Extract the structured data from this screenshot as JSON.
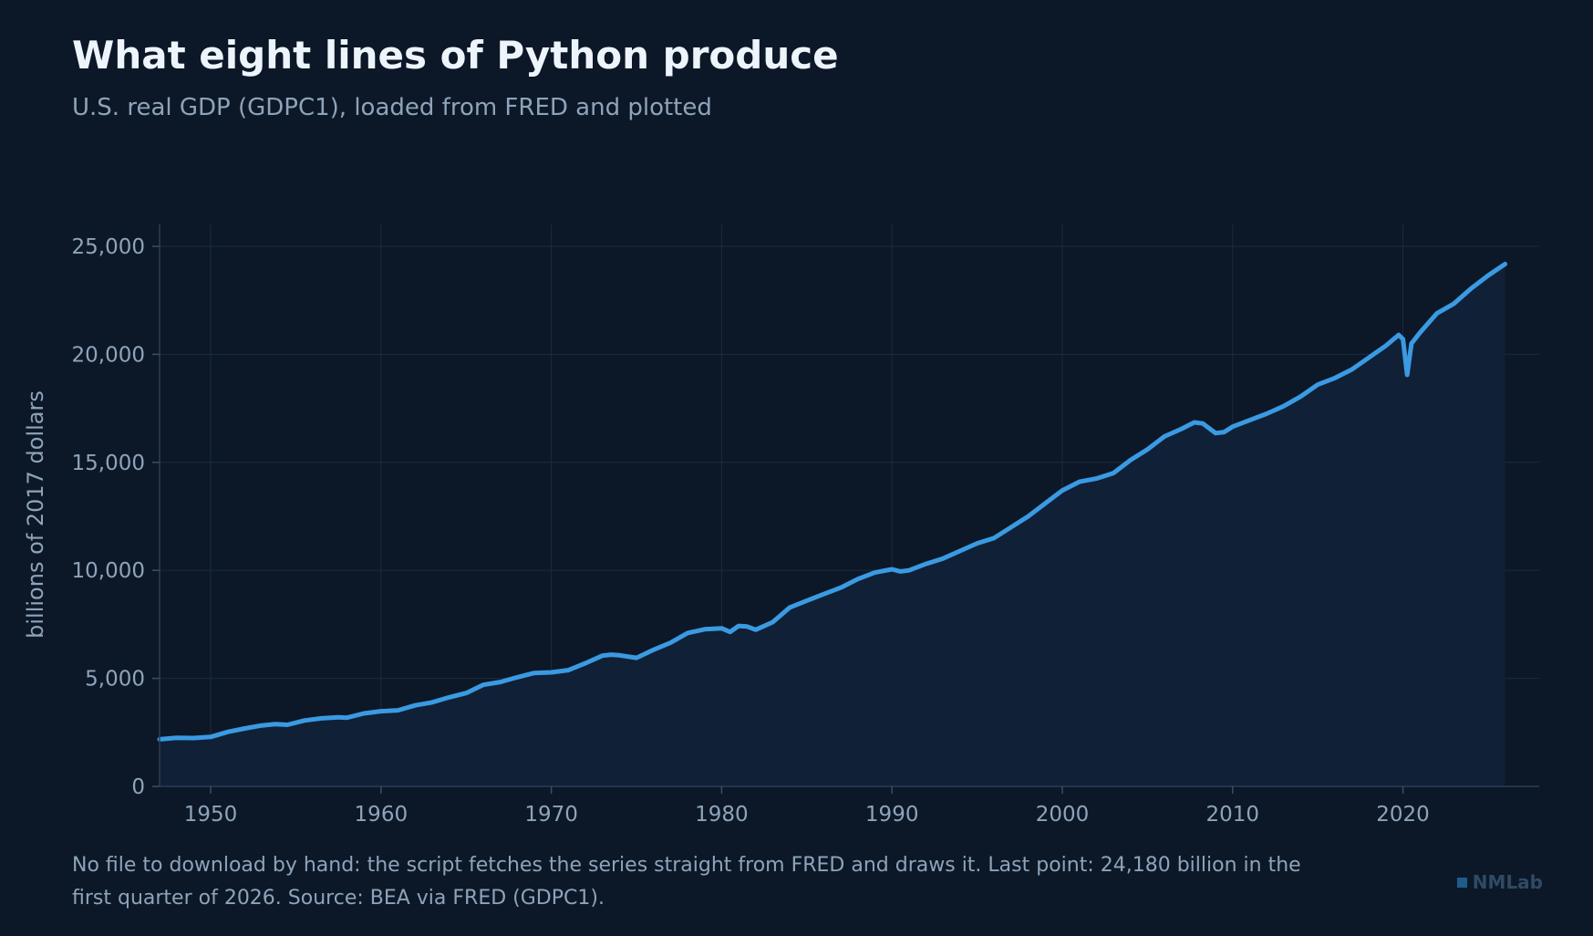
{
  "header": {
    "title": "What eight lines of Python produce",
    "subtitle": "U.S. real GDP (GDPC1), loaded from FRED and plotted"
  },
  "footer": {
    "caption": "No file to download by hand: the script fetches the series straight from FRED and draws it. Last point: 24,180 billion in the first quarter of 2026. Source: BEA via FRED (GDPC1).",
    "brand": "NMLab"
  },
  "colors": {
    "background": "#0c1827",
    "line": "#3a9ae2",
    "area": "#102036",
    "grid": "#1b2a3d",
    "tick_text": "#8fa3ba"
  },
  "chart_data": {
    "type": "area",
    "ylabel": "billions of 2017 dollars",
    "xlim": [
      1947,
      2028
    ],
    "ylim": [
      0,
      26000
    ],
    "x_ticks": [
      1950,
      1960,
      1970,
      1980,
      1990,
      2000,
      2010,
      2020
    ],
    "x_tick_labels": [
      "1950",
      "1960",
      "1970",
      "1980",
      "1990",
      "2000",
      "2010",
      "2020"
    ],
    "y_ticks": [
      0,
      5000,
      10000,
      15000,
      20000,
      25000
    ],
    "y_tick_labels": [
      "0",
      "5,000",
      "10,000",
      "15,000",
      "20,000",
      "25,000"
    ],
    "grid": true,
    "x": [
      1947.0,
      1948.0,
      1949.0,
      1950.0,
      1951.0,
      1952.0,
      1953.0,
      1953.8,
      1954.5,
      1955.5,
      1956.5,
      1957.5,
      1958.0,
      1959.0,
      1960.0,
      1961.0,
      1962.0,
      1963.0,
      1964.0,
      1965.0,
      1966.0,
      1967.0,
      1968.0,
      1969.0,
      1970.0,
      1971.0,
      1972.0,
      1973.0,
      1973.5,
      1974.0,
      1975.0,
      1976.0,
      1977.0,
      1978.0,
      1979.0,
      1980.0,
      1980.5,
      1981.0,
      1981.5,
      1982.0,
      1983.0,
      1984.0,
      1985.0,
      1986.0,
      1987.0,
      1988.0,
      1989.0,
      1990.0,
      1990.5,
      1991.0,
      1992.0,
      1993.0,
      1994.0,
      1995.0,
      1996.0,
      1997.0,
      1998.0,
      1999.0,
      2000.0,
      2001.0,
      2002.0,
      2003.0,
      2004.0,
      2005.0,
      2006.0,
      2007.0,
      2007.75,
      2008.25,
      2009.0,
      2009.5,
      2010.0,
      2011.0,
      2012.0,
      2013.0,
      2014.0,
      2015.0,
      2016.0,
      2017.0,
      2018.0,
      2019.0,
      2019.75,
      2020.0,
      2020.25,
      2020.5,
      2021.0,
      2022.0,
      2023.0,
      2024.0,
      2025.0,
      2026.0
    ],
    "series": [
      {
        "values": [
          2180,
          2250,
          2240,
          2290,
          2520,
          2680,
          2820,
          2880,
          2850,
          3050,
          3150,
          3200,
          3180,
          3380,
          3480,
          3520,
          3750,
          3890,
          4120,
          4320,
          4700,
          4830,
          5050,
          5250,
          5280,
          5380,
          5700,
          6050,
          6100,
          6070,
          5950,
          6320,
          6650,
          7100,
          7270,
          7320,
          7150,
          7430,
          7400,
          7250,
          7600,
          8280,
          8600,
          8900,
          9200,
          9600,
          9900,
          10050,
          9950,
          10000,
          10300,
          10550,
          10900,
          11250,
          11500,
          12000,
          12500,
          13100,
          13700,
          14100,
          14250,
          14500,
          15100,
          15600,
          16200,
          16550,
          16850,
          16800,
          16350,
          16400,
          16650,
          16950,
          17250,
          17600,
          18050,
          18600,
          18900,
          19300,
          19850,
          20400,
          20900,
          20700,
          19050,
          20500,
          21000,
          21900,
          22350,
          23050,
          23650,
          24180
        ]
      }
    ]
  }
}
